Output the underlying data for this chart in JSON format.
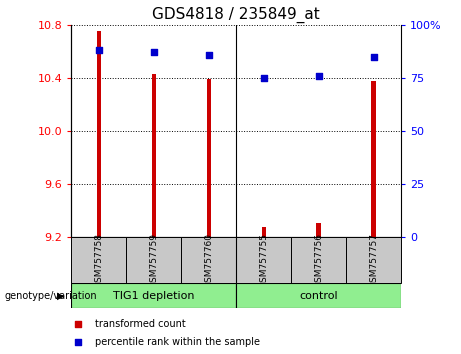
{
  "title": "GDS4818 / 235849_at",
  "samples": [
    "GSM757758",
    "GSM757759",
    "GSM757760",
    "GSM757755",
    "GSM757756",
    "GSM757757"
  ],
  "transformed_count": [
    10.75,
    10.43,
    10.39,
    9.28,
    9.31,
    10.38
  ],
  "percentile_rank": [
    88,
    87,
    86,
    75,
    76,
    85
  ],
  "ylim_left": [
    9.2,
    10.8
  ],
  "ylim_right": [
    0,
    100
  ],
  "yticks_left": [
    9.2,
    9.6,
    10.0,
    10.4,
    10.8
  ],
  "yticks_right": [
    0,
    25,
    50,
    75,
    100
  ],
  "bar_bottom": 9.2,
  "bar_color": "#cc0000",
  "dot_color": "#0000cc",
  "group1_label": "TIG1 depletion",
  "group2_label": "control",
  "group_color": "#90ee90",
  "sample_box_color": "#c8c8c8",
  "group_label_text": "genotype/variation",
  "legend_bar_label": "transformed count",
  "legend_dot_label": "percentile rank within the sample",
  "title_fontsize": 11,
  "tick_fontsize": 8,
  "bar_width": 0.08,
  "dot_size": 25,
  "n_samples": 6,
  "group1_count": 3,
  "group2_count": 3
}
